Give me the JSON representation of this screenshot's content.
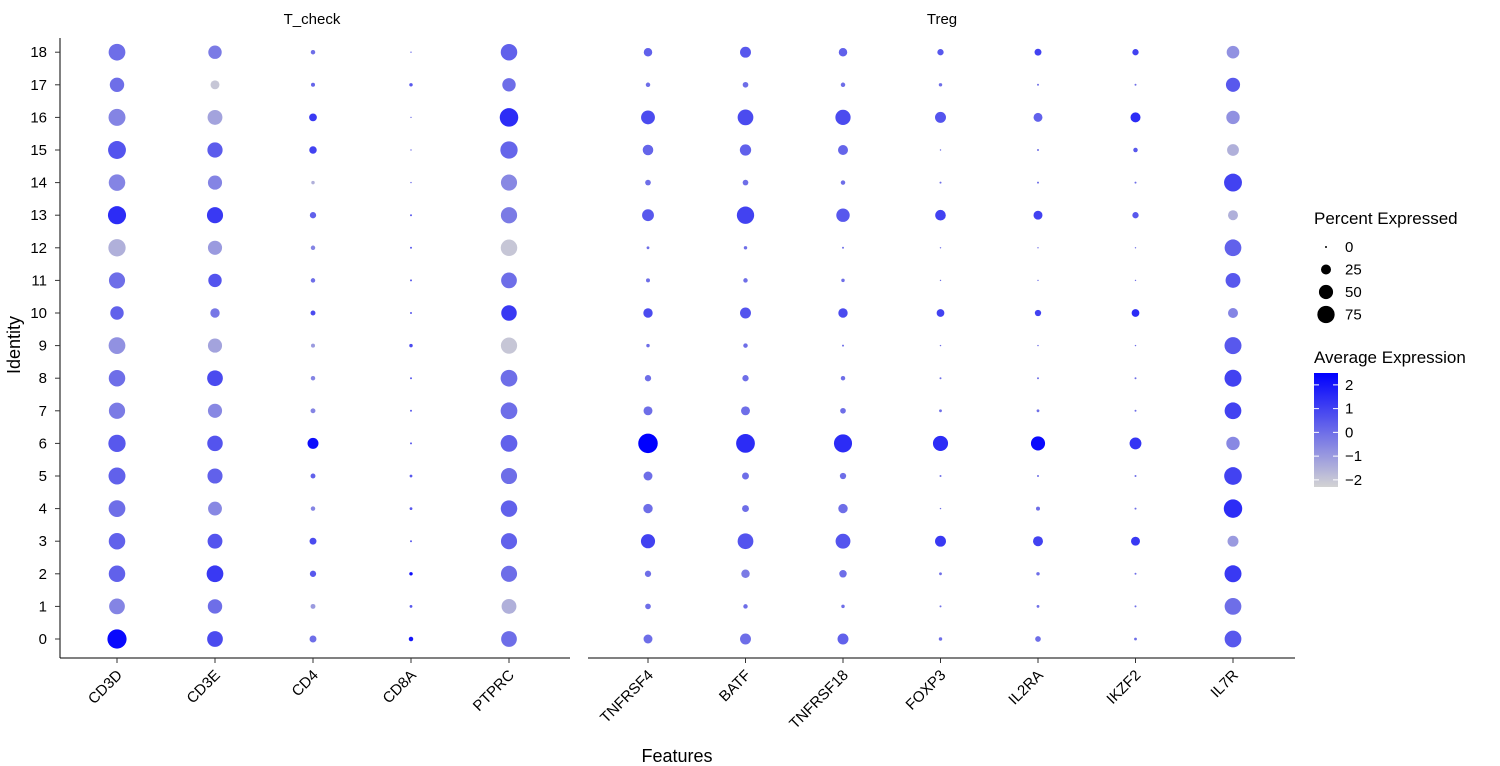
{
  "chart_data": {
    "type": "dotplot",
    "ylabel": "Identity",
    "xlabel": "Features",
    "identities": [
      "0",
      "1",
      "2",
      "3",
      "4",
      "5",
      "6",
      "7",
      "8",
      "9",
      "10",
      "11",
      "12",
      "13",
      "14",
      "15",
      "16",
      "17",
      "18"
    ],
    "panels": [
      {
        "title": "T_check",
        "features": [
          "CD3D",
          "CD3E",
          "CD4",
          "CD8A",
          "PTPRC"
        ],
        "percent": [
          [
            92,
            62,
            12,
            5,
            62
          ],
          [
            62,
            52,
            6,
            2,
            55
          ],
          [
            68,
            70,
            10,
            3,
            65
          ],
          [
            68,
            55,
            12,
            1,
            65
          ],
          [
            70,
            48,
            5,
            2,
            68
          ],
          [
            72,
            57,
            6,
            2,
            65
          ],
          [
            75,
            60,
            30,
            1,
            70
          ],
          [
            66,
            50,
            6,
            1,
            70
          ],
          [
            68,
            62,
            5,
            1,
            70
          ],
          [
            70,
            50,
            4,
            3,
            66
          ],
          [
            45,
            22,
            6,
            1,
            60
          ],
          [
            65,
            45,
            5,
            1,
            62
          ],
          [
            75,
            50,
            5,
            1,
            68
          ],
          [
            82,
            65,
            10,
            1,
            66
          ],
          [
            68,
            50,
            3,
            0.5,
            65
          ],
          [
            80,
            58,
            14,
            0.5,
            75
          ],
          [
            72,
            55,
            15,
            0.5,
            86
          ],
          [
            52,
            20,
            4,
            3,
            45
          ],
          [
            70,
            45,
            5,
            0.5,
            68
          ]
        ],
        "expression": [
          [
            2.3,
            0.8,
            0.0,
            2.0,
            0.0
          ],
          [
            -0.5,
            0.0,
            -1.0,
            0.5,
            -1.5
          ],
          [
            0.3,
            1.2,
            0.5,
            2.2,
            0.0
          ],
          [
            0.3,
            0.6,
            0.8,
            0.5,
            0.3
          ],
          [
            0.0,
            -0.6,
            -0.5,
            0.5,
            0.3
          ],
          [
            0.3,
            0.3,
            0.3,
            0.5,
            0.0
          ],
          [
            0.5,
            0.6,
            2.2,
            0.5,
            0.3
          ],
          [
            -0.3,
            -0.6,
            -0.5,
            0.5,
            0.0
          ],
          [
            0.0,
            0.8,
            -0.5,
            0.5,
            0.0
          ],
          [
            -0.8,
            -1.2,
            -1.0,
            0.8,
            -2.0
          ],
          [
            0.3,
            -0.2,
            0.8,
            0.5,
            1.2
          ],
          [
            0.0,
            0.6,
            0.0,
            0.5,
            0.0
          ],
          [
            -1.5,
            -1.0,
            -0.5,
            0.5,
            -2.0
          ],
          [
            1.5,
            1.2,
            0.3,
            0.5,
            -0.3
          ],
          [
            -0.5,
            -0.5,
            -1.5,
            0.0,
            -0.6
          ],
          [
            0.6,
            0.4,
            1.0,
            0.0,
            0.2
          ],
          [
            -0.5,
            -1.2,
            1.2,
            0.0,
            1.5
          ],
          [
            0.0,
            -2.0,
            0.2,
            0.5,
            0.0
          ],
          [
            0.0,
            -0.3,
            0.0,
            0.0,
            0.3
          ]
        ]
      },
      {
        "title": "Treg",
        "features": [
          "TNFRSF4",
          "BATF",
          "TNFRSF18",
          "FOXP3",
          "IL2RA",
          "IKZF2",
          "IL7R"
        ],
        "percent": [
          [
            20,
            30,
            30,
            3,
            8,
            2,
            70
          ],
          [
            8,
            5,
            3,
            1,
            2,
            1,
            70
          ],
          [
            10,
            18,
            14,
            2,
            3,
            1,
            72
          ],
          [
            50,
            62,
            55,
            30,
            25,
            20,
            30
          ],
          [
            22,
            12,
            22,
            0.5,
            4,
            1,
            85
          ],
          [
            20,
            12,
            10,
            1,
            1,
            1,
            78
          ],
          [
            95,
            88,
            82,
            57,
            50,
            35,
            45
          ],
          [
            20,
            20,
            8,
            2,
            2,
            1,
            70
          ],
          [
            10,
            10,
            5,
            1,
            1,
            1,
            72
          ],
          [
            3,
            5,
            1,
            0.5,
            0.5,
            0.5,
            72
          ],
          [
            22,
            30,
            22,
            15,
            10,
            15,
            25
          ],
          [
            4,
            5,
            3,
            0.5,
            0.5,
            0.5,
            55
          ],
          [
            2,
            3,
            1,
            0.5,
            0.5,
            0.5,
            70
          ],
          [
            35,
            75,
            45,
            28,
            20,
            10,
            25
          ],
          [
            8,
            8,
            5,
            1,
            1,
            1,
            80
          ],
          [
            28,
            32,
            25,
            0.5,
            1,
            5,
            35
          ],
          [
            48,
            62,
            58,
            30,
            20,
            25,
            45
          ],
          [
            5,
            8,
            5,
            3,
            1,
            1,
            50
          ],
          [
            18,
            30,
            18,
            10,
            12,
            10,
            40
          ]
        ],
        "expression": [
          [
            0.0,
            0.0,
            0.3,
            0.0,
            0.0,
            0.0,
            0.5
          ],
          [
            0.0,
            0.0,
            0.0,
            0.0,
            0.0,
            0.0,
            0.0
          ],
          [
            0.0,
            -0.3,
            0.0,
            0.0,
            0.0,
            0.0,
            1.2
          ],
          [
            1.0,
            0.6,
            0.6,
            1.2,
            1.0,
            1.2,
            -1.0
          ],
          [
            0.0,
            0.0,
            0.0,
            0.0,
            0.0,
            0.0,
            1.5
          ],
          [
            0.0,
            0.0,
            0.0,
            0.0,
            0.0,
            0.0,
            1.0
          ],
          [
            2.5,
            1.5,
            1.5,
            1.5,
            2.3,
            1.3,
            -0.6
          ],
          [
            0.0,
            0.0,
            0.0,
            0.0,
            0.0,
            0.0,
            1.0
          ],
          [
            0.0,
            0.0,
            0.0,
            0.0,
            0.0,
            0.0,
            1.0
          ],
          [
            0.0,
            0.0,
            0.0,
            0.0,
            0.0,
            0.0,
            0.5
          ],
          [
            0.8,
            0.6,
            0.8,
            1.0,
            1.0,
            1.5,
            -0.5
          ],
          [
            0.0,
            0.0,
            0.0,
            0.0,
            0.0,
            0.0,
            0.5
          ],
          [
            0.0,
            0.0,
            0.0,
            0.0,
            0.0,
            0.0,
            0.3
          ],
          [
            0.5,
            1.0,
            0.5,
            1.0,
            1.0,
            0.5,
            -1.5
          ],
          [
            0.0,
            0.0,
            0.0,
            0.0,
            0.0,
            0.0,
            1.0
          ],
          [
            0.2,
            0.3,
            0.2,
            0.0,
            0.0,
            0.5,
            -1.5
          ],
          [
            0.8,
            0.8,
            0.8,
            0.6,
            0.3,
            1.5,
            -0.8
          ],
          [
            0.0,
            0.0,
            0.0,
            0.0,
            0.0,
            0.0,
            0.5
          ],
          [
            0.3,
            0.5,
            0.3,
            0.5,
            1.0,
            1.0,
            -0.8
          ]
        ]
      }
    ],
    "legend": {
      "size_title": "Percent Expressed",
      "size_breaks": [
        0,
        25,
        50,
        75
      ],
      "size_labels": [
        "0",
        "25",
        "50",
        "75"
      ],
      "color_title": "Average Expression",
      "color_breaks": [
        2,
        1,
        0,
        -1,
        -2
      ],
      "color_labels": [
        "2",
        "1",
        "0",
        "−1",
        "−2"
      ],
      "color_range": [
        -2.3,
        2.5
      ],
      "color_low": "#d3d3d3",
      "color_high": "#0000ff",
      "placement": "right"
    }
  }
}
